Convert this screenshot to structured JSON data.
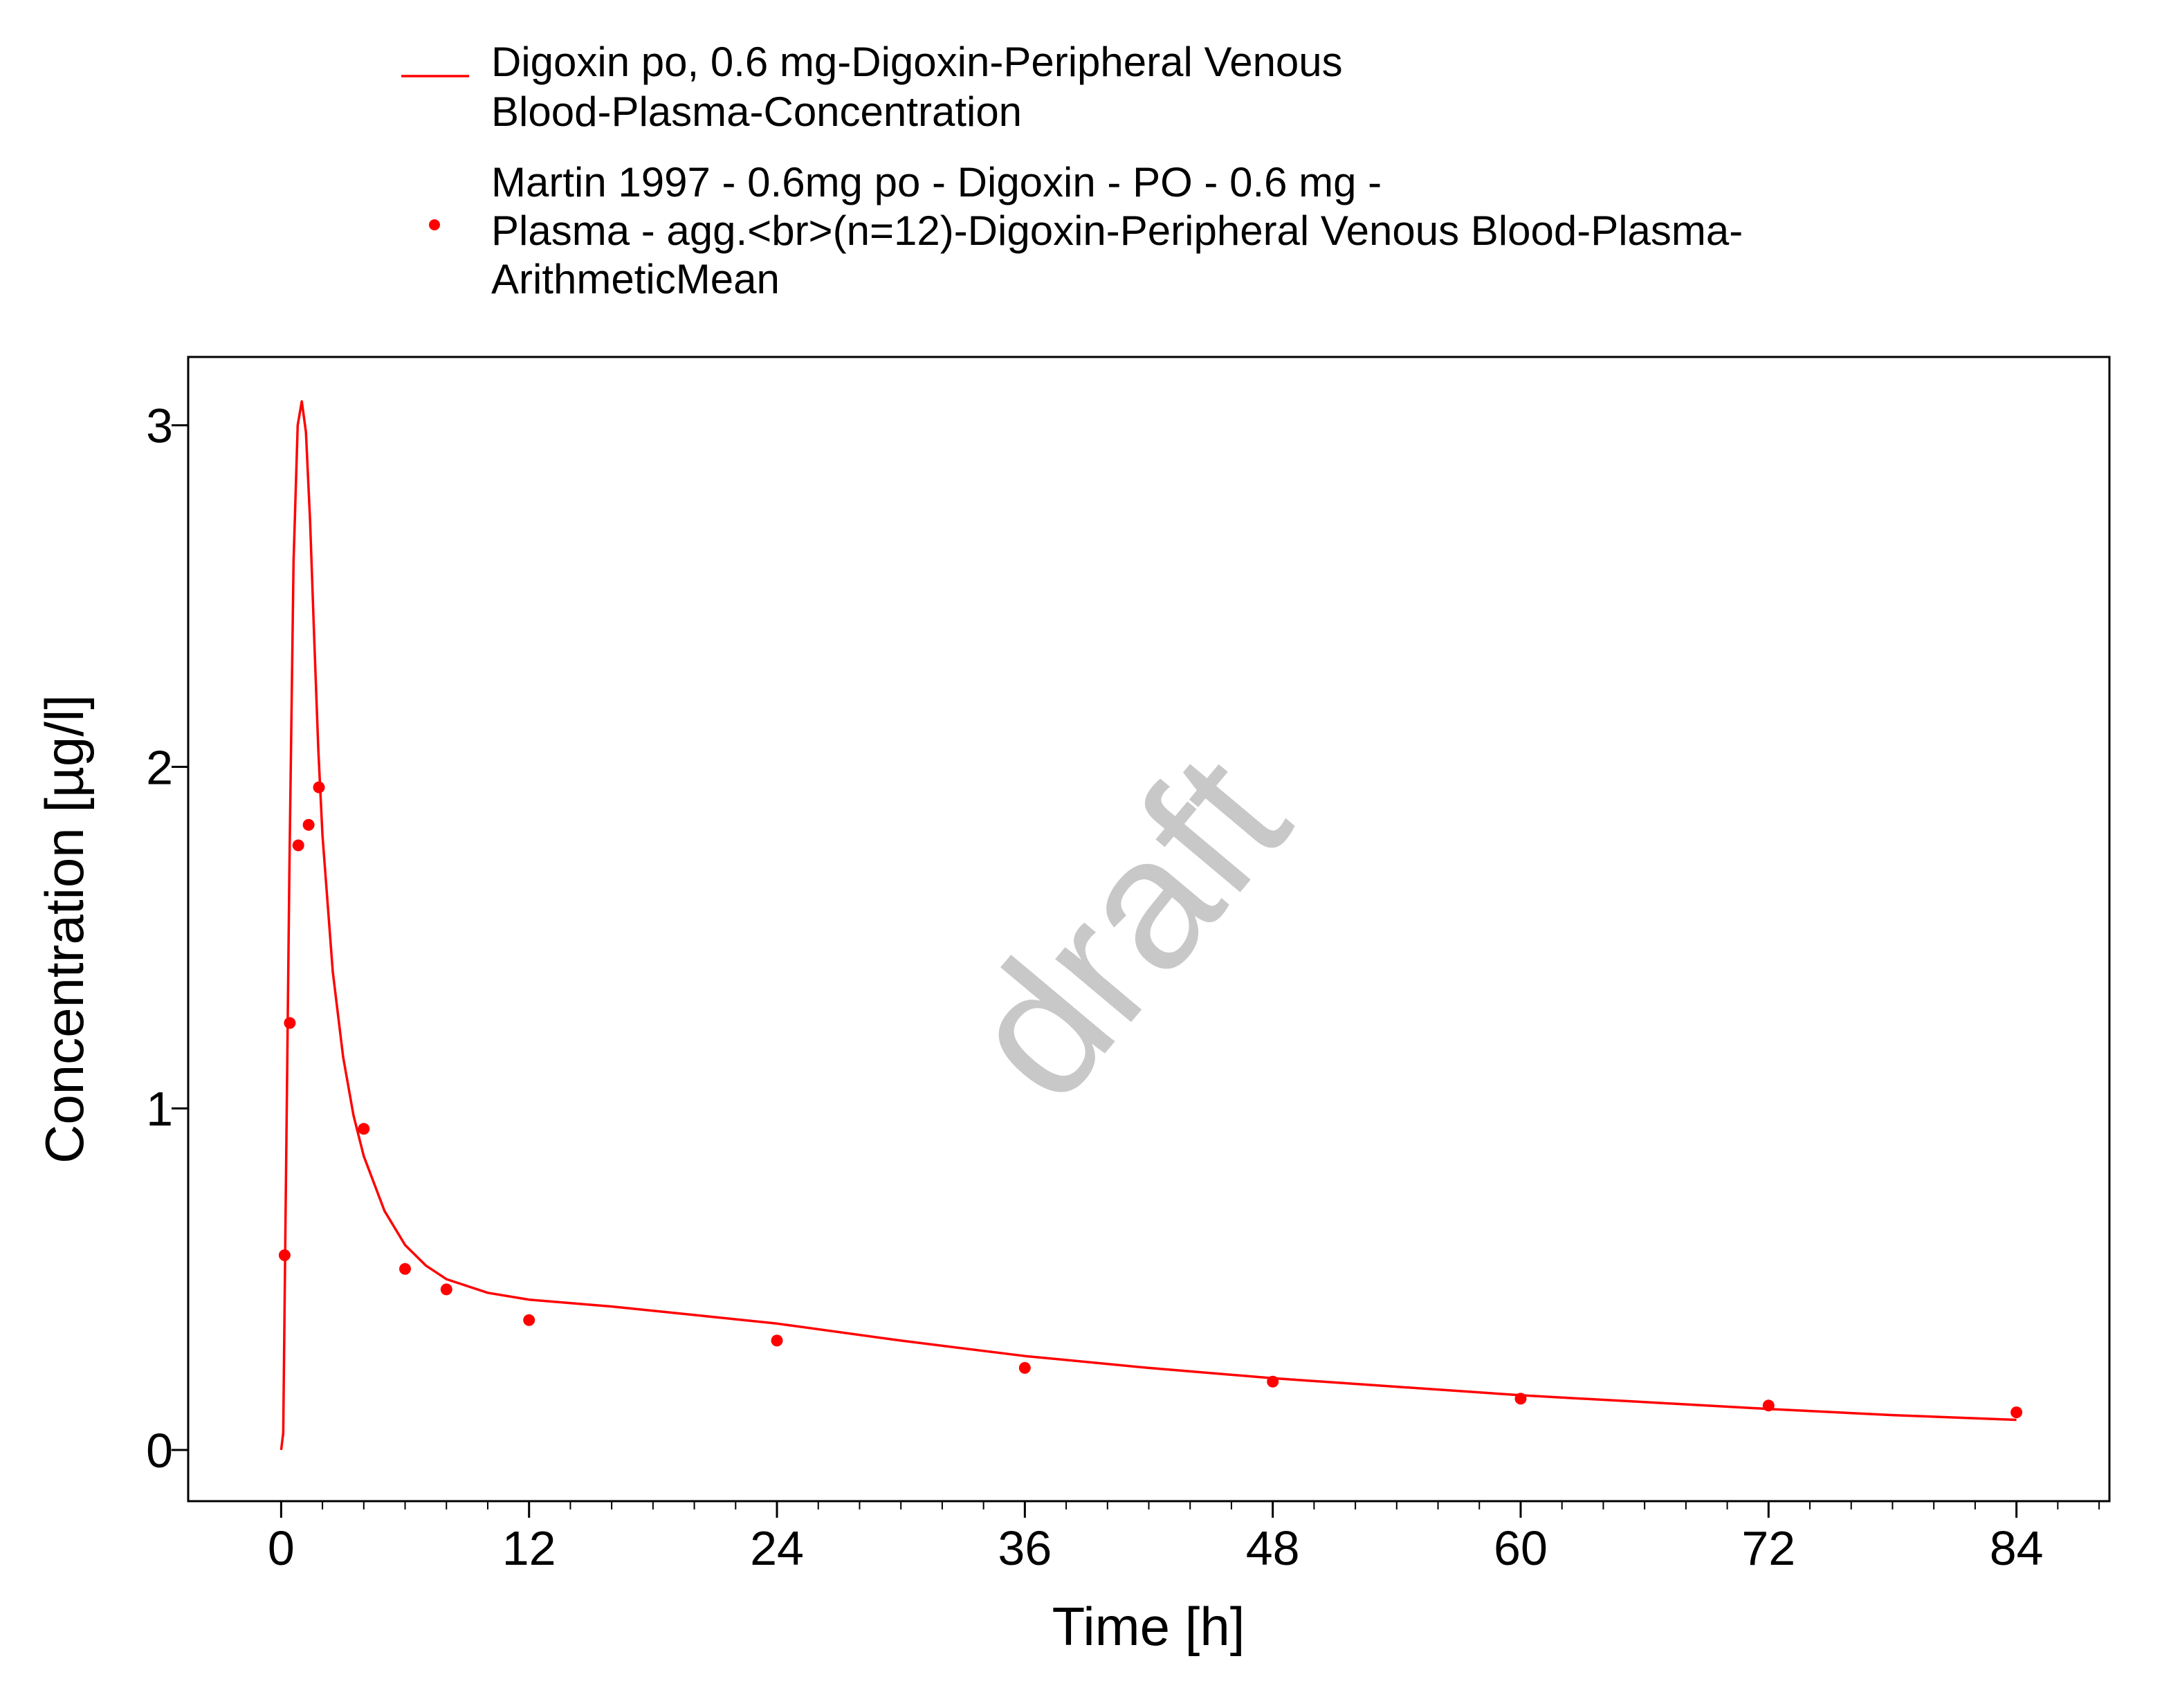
{
  "chart_data": {
    "type": "line",
    "title": "",
    "xlabel": "Time [h]",
    "ylabel": "Concentration [µg/l]",
    "xlim": [
      -4.5,
      88.5
    ],
    "ylim": [
      -0.15,
      3.2
    ],
    "x_ticks": [
      0,
      12,
      24,
      36,
      48,
      60,
      72,
      84
    ],
    "y_ticks": [
      0,
      1,
      2,
      3
    ],
    "x_tick_labels": [
      "0",
      "12",
      "24",
      "36",
      "48",
      "60",
      "72",
      "84"
    ],
    "y_tick_labels": [
      "0",
      "1",
      "2",
      "3"
    ],
    "grid": false,
    "legend_position": "top",
    "watermark": "draft",
    "series": [
      {
        "name": "Digoxin po, 0.6 mg-Digoxin-Peripheral Venous Blood-Plasma-Concentration",
        "legend_lines": [
          "Digoxin po, 0.6 mg-Digoxin-Peripheral Venous",
          "Blood-Plasma-Concentration"
        ],
        "kind": "line",
        "color": "#ff0000",
        "x": [
          0,
          0.1,
          0.2,
          0.4,
          0.6,
          0.8,
          1.0,
          1.2,
          1.4,
          1.6,
          1.8,
          2.0,
          2.5,
          3.0,
          3.5,
          4.0,
          5.0,
          6.0,
          7.0,
          8.0,
          10.0,
          12.0,
          16.0,
          20.0,
          24.0,
          30.0,
          36.0,
          42.0,
          48.0,
          54.0,
          60.0,
          66.0,
          72.0,
          78.0,
          84.0
        ],
        "y": [
          0.0,
          0.05,
          0.6,
          1.7,
          2.6,
          3.0,
          3.07,
          2.98,
          2.72,
          2.38,
          2.05,
          1.8,
          1.4,
          1.15,
          0.98,
          0.86,
          0.7,
          0.6,
          0.54,
          0.5,
          0.46,
          0.44,
          0.42,
          0.395,
          0.37,
          0.32,
          0.275,
          0.24,
          0.21,
          0.185,
          0.16,
          0.14,
          0.12,
          0.102,
          0.088
        ]
      },
      {
        "name": "Martin 1997 - 0.6mg po - Digoxin - PO - 0.6 mg - Plasma - agg.<br>(n=12)-Digoxin-Peripheral Venous Blood-Plasma-ArithmeticMean",
        "legend_lines": [
          "Martin 1997 - 0.6mg po - Digoxin - PO - 0.6 mg -",
          "Plasma - agg.<br>(n=12)-Digoxin-Peripheral Venous Blood-Plasma-",
          "ArithmeticMean"
        ],
        "kind": "scatter",
        "color": "#ff0000",
        "x": [
          0.17,
          0.42,
          0.83,
          1.33,
          1.83,
          4.0,
          6.0,
          8.0,
          12.0,
          24.0,
          36.0,
          48.0,
          60.0,
          72.0,
          84.0
        ],
        "y": [
          0.57,
          1.25,
          1.77,
          1.83,
          1.94,
          0.94,
          0.53,
          0.47,
          0.38,
          0.32,
          0.24,
          0.2,
          0.15,
          0.13,
          0.11
        ]
      }
    ]
  }
}
